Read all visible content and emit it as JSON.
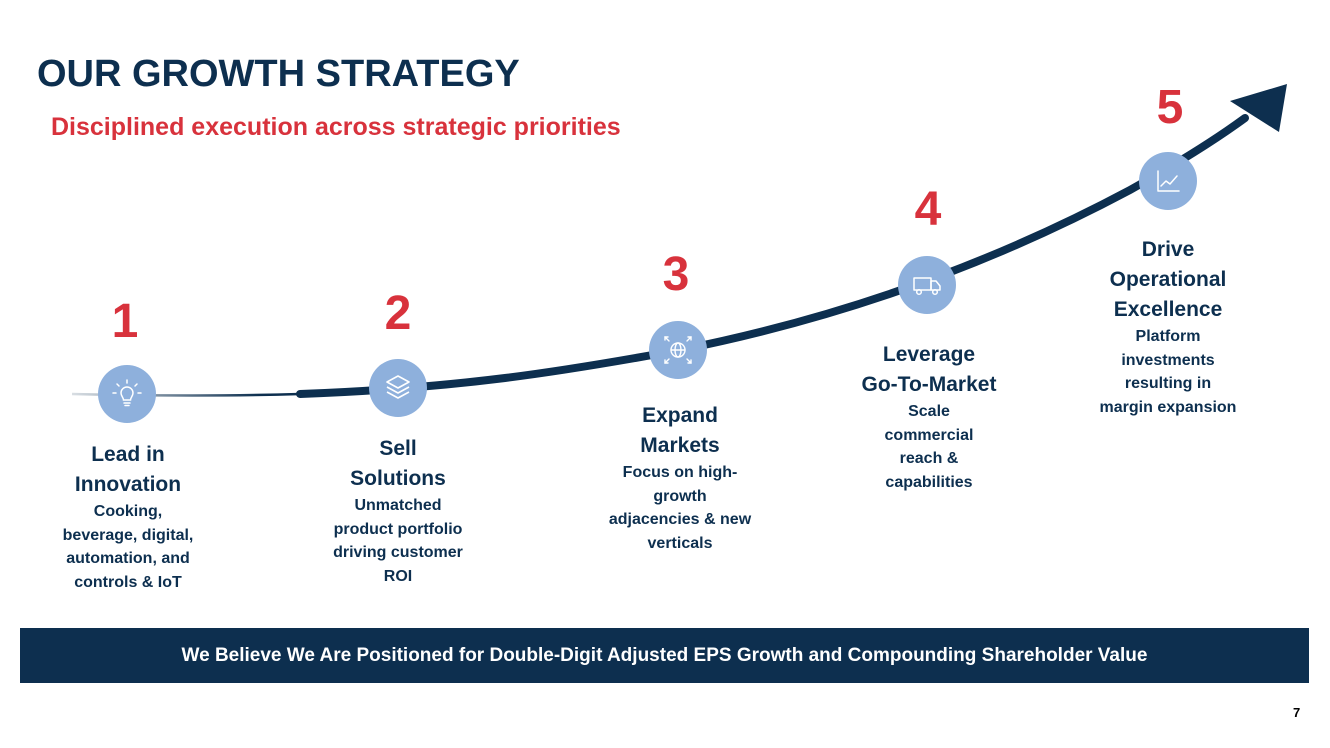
{
  "header": {
    "title": "OUR GROWTH STRATEGY",
    "subtitle": "Disciplined execution across strategic priorities"
  },
  "steps": [
    {
      "number": "1",
      "icon": "lightbulb-icon",
      "title_lines": [
        "Lead in",
        "Innovation"
      ],
      "desc_lines": [
        "Cooking,",
        "beverage, digital,",
        "automation, and",
        "controls & IoT"
      ]
    },
    {
      "number": "2",
      "icon": "layers-icon",
      "title_lines": [
        "Sell",
        "Solutions"
      ],
      "desc_lines": [
        "Unmatched",
        "product portfolio",
        "driving customer",
        "ROI"
      ]
    },
    {
      "number": "3",
      "icon": "globe-expand-icon",
      "title_lines": [
        "Expand",
        "Markets"
      ],
      "desc_lines": [
        "Focus on high-",
        "growth",
        "adjacencies & new",
        "verticals"
      ]
    },
    {
      "number": "4",
      "icon": "truck-icon",
      "title_lines": [
        "Leverage",
        "Go-To-Market"
      ],
      "desc_lines": [
        "Scale",
        "commercial",
        "reach &",
        "capabilities"
      ]
    },
    {
      "number": "5",
      "icon": "line-chart-icon",
      "title_lines": [
        "Drive",
        "Operational",
        "Excellence"
      ],
      "desc_lines": [
        "Platform",
        "investments",
        "resulting in",
        "margin expansion"
      ]
    }
  ],
  "banner": {
    "text": "We Believe We Are Positioned for Double-Digit Adjusted EPS Growth and Compounding Shareholder Value"
  },
  "page_number": "7",
  "colors": {
    "navy": "#0d2f4f",
    "red": "#d8323c",
    "icon_circle": "#8eb0dc"
  }
}
